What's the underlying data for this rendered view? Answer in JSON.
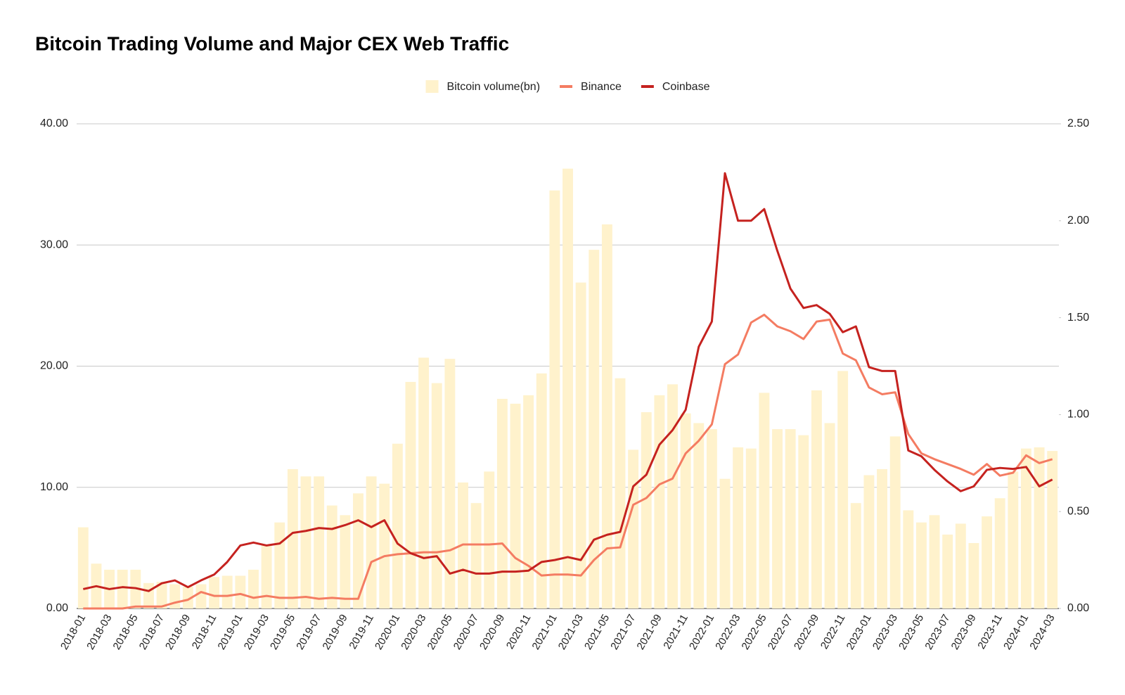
{
  "chart_data": {
    "type": "combo",
    "title": "Bitcoin Trading Volume and Major CEX Web Traffic",
    "categories": [
      "2018-01",
      null,
      "2018-03",
      null,
      "2018-05",
      null,
      "2018-07",
      null,
      "2018-09",
      null,
      "2018-11",
      null,
      "2019-01",
      null,
      "2019-03",
      null,
      "2019-05",
      null,
      "2019-07",
      null,
      "2019-09",
      null,
      "2019-11",
      null,
      "2020-01",
      null,
      "2020-03",
      null,
      "2020-05",
      null,
      "2020-07",
      null,
      "2020-09",
      null,
      "2020-11",
      null,
      "2021-01",
      null,
      "2021-03",
      null,
      "2021-05",
      null,
      "2021-07",
      null,
      "2021-09",
      null,
      "2021-11",
      null,
      "2022-01",
      null,
      "2022-03",
      null,
      "2022-05",
      null,
      "2022-07",
      null,
      "2022-09",
      null,
      "2022-11",
      null,
      "2023-01",
      null,
      "2023-03",
      null,
      "2023-05",
      null,
      "2023-07",
      null,
      "2023-09",
      null,
      "2023-11",
      null,
      "2024-01",
      null,
      "2024-03"
    ],
    "series": [
      {
        "name": "Bitcoin volume(bn)",
        "type": "bar",
        "color": "#fff2cc",
        "values": [
          6.7,
          3.7,
          3.2,
          3.2,
          3.2,
          2.1,
          2.2,
          2.0,
          1.8,
          2.0,
          2.6,
          2.7,
          2.7,
          3.2,
          5.2,
          7.1,
          11.5,
          10.9,
          10.9,
          8.5,
          7.7,
          9.5,
          10.9,
          10.3,
          13.6,
          18.7,
          20.7,
          18.6,
          20.6,
          10.4,
          8.7,
          11.3,
          17.3,
          16.9,
          17.6,
          19.4,
          34.5,
          36.3,
          26.9,
          29.6,
          31.7,
          19.0,
          13.1,
          16.2,
          17.6,
          18.5,
          16.1,
          15.3,
          14.8,
          10.7,
          13.3,
          13.2,
          17.8,
          14.8,
          14.8,
          14.3,
          18.0,
          15.3,
          19.6,
          8.7,
          11.0,
          11.5,
          14.2,
          8.1,
          7.1,
          7.7,
          6.1,
          7.0,
          5.4,
          7.6,
          9.1,
          11.3,
          13.2,
          13.3,
          13.0
        ]
      },
      {
        "name": "Binance",
        "type": "line",
        "axis": "y2",
        "color": "#f47c62",
        "values": [
          0.0,
          0.0,
          0.0,
          0.0,
          0.01,
          0.01,
          0.01,
          0.03,
          0.045,
          0.085,
          0.065,
          0.065,
          0.075,
          0.055,
          0.065,
          0.055,
          0.055,
          0.06,
          0.05,
          0.055,
          0.05,
          0.05,
          0.24,
          0.27,
          0.28,
          0.285,
          0.29,
          0.29,
          0.3,
          0.33,
          0.33,
          0.33,
          0.335,
          0.26,
          0.22,
          0.17,
          0.175,
          0.175,
          0.17,
          0.25,
          0.31,
          0.315,
          0.535,
          0.57,
          0.64,
          0.67,
          0.8,
          0.865,
          0.95,
          1.26,
          1.31,
          1.475,
          1.515,
          1.455,
          1.43,
          1.39,
          1.48,
          1.49,
          1.315,
          1.28,
          1.14,
          1.105,
          1.115,
          0.9,
          0.8,
          0.77,
          0.745,
          0.72,
          0.69,
          0.745,
          0.685,
          0.7,
          0.79,
          0.75,
          0.77
        ]
      },
      {
        "name": "Coinbase",
        "type": "line",
        "axis": "y2",
        "color": "#c5221f",
        "values": [
          0.1,
          0.115,
          0.1,
          0.11,
          0.105,
          0.09,
          0.13,
          0.145,
          0.11,
          0.145,
          0.175,
          0.24,
          0.325,
          0.34,
          0.325,
          0.335,
          0.39,
          0.4,
          0.415,
          0.41,
          0.43,
          0.455,
          0.42,
          0.455,
          0.335,
          0.285,
          0.26,
          0.27,
          0.18,
          0.2,
          0.18,
          0.18,
          0.19,
          0.19,
          0.195,
          0.24,
          0.25,
          0.265,
          0.25,
          0.355,
          0.38,
          0.395,
          0.63,
          0.69,
          0.845,
          0.92,
          1.025,
          1.35,
          1.48,
          2.245,
          2.0,
          2.0,
          2.06,
          1.845,
          1.65,
          1.55,
          1.565,
          1.52,
          1.425,
          1.455,
          1.245,
          1.225,
          1.225,
          0.815,
          0.785,
          0.715,
          0.655,
          0.605,
          0.63,
          0.715,
          0.725,
          0.72,
          0.73,
          0.63,
          0.665
        ]
      }
    ],
    "ylim": [
      0,
      40
    ],
    "yticks": [
      {
        "value": 0,
        "label": "0.00"
      },
      {
        "value": 10,
        "label": "10.00"
      },
      {
        "value": 20,
        "label": "20.00"
      },
      {
        "value": 30,
        "label": "30.00"
      },
      {
        "value": 40,
        "label": "40.00"
      }
    ],
    "y2lim": [
      0,
      2.5
    ],
    "y2ticks": [
      {
        "value": 0,
        "label": "0.00"
      },
      {
        "value": 0.5,
        "label": "0.50"
      },
      {
        "value": 1,
        "label": "1.00"
      },
      {
        "value": 1.5,
        "label": "1.50"
      },
      {
        "value": 2,
        "label": "2.00"
      },
      {
        "value": 2.5,
        "label": "2.50"
      }
    ],
    "grid": true,
    "legend": "top"
  }
}
